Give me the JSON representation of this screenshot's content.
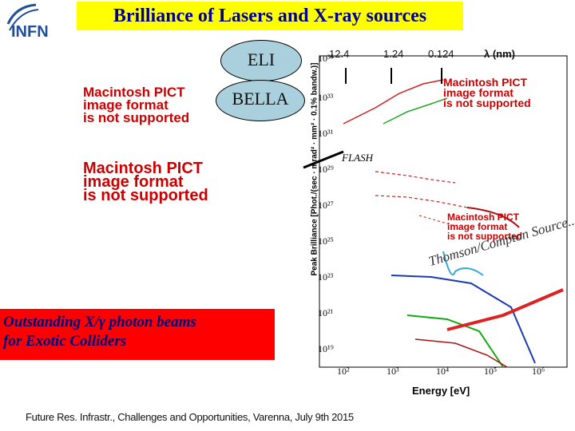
{
  "title": "Brilliance of Lasers and X-ray sources",
  "logo_text": "INFN",
  "ellipses": {
    "eli": "ELI",
    "bella": "BELLA"
  },
  "pict_notice": {
    "line1": "Macintosh PICT",
    "line2": "image format",
    "line3": "is not supported"
  },
  "wavelength_labels": [
    "12.4",
    "1.24",
    "0.124"
  ],
  "wavelength_unit": "λ  (nm)",
  "flash_label": "FLASH",
  "thomson_label": "Thomson/Compton Source..",
  "highlight": {
    "line1": "Outstanding X/γ photon beams",
    "line2": "for Exotic Colliders"
  },
  "xaxis": {
    "label": "Energy [eV]",
    "ticks": [
      "10²",
      "10³",
      "10⁴",
      "10⁵",
      "10⁶"
    ]
  },
  "yaxis": {
    "label": "Peak Brilliance [Phot./(sec · mrad² · mm² · 0.1% bandw.)]",
    "ticks": [
      "10³⁵",
      "10³³",
      "10³¹",
      "10²⁹",
      "10²⁷",
      "10²⁵",
      "10²³",
      "10²¹",
      "10¹⁹"
    ]
  },
  "footer": "Future Res. Infrastr., Challenges and Opportunities, Varenna, July 9th 2015",
  "colors": {
    "title_bg": "#ffff00",
    "title_text": "#00008b",
    "ellipse": "#a9d0dc",
    "highlight_bg": "#ff0000",
    "pict_text": "#cc0000"
  }
}
